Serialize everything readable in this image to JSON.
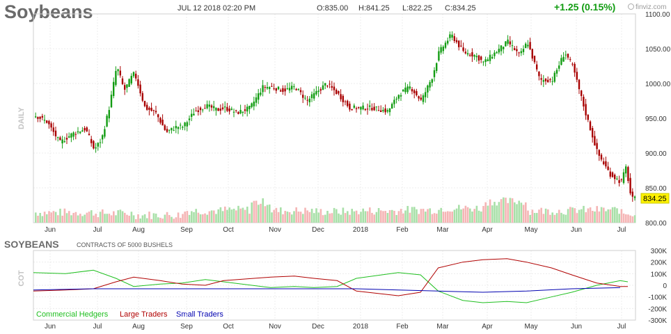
{
  "header": {
    "title": "Soybeans",
    "datetime": "JUL 12 2018 02:20 PM",
    "open": "O:835.00",
    "high": "H:841.25",
    "low": "L:822.25",
    "close": "C:834.25",
    "change": "+1.25 (0.15%)",
    "logo": "finviz.com",
    "colors": {
      "up": "#129c12",
      "down": "#a80000"
    }
  },
  "price_panel": {
    "side_label": "DAILY",
    "last_price_tag": "834.25",
    "month_labels": [
      "Jun",
      "Jul",
      "Aug",
      "Sep",
      "Oct",
      "Nov",
      "Dec",
      "2018",
      "Feb",
      "Mar",
      "Apr",
      "May",
      "Jun",
      "Jul"
    ]
  },
  "cot_panel": {
    "title": "SOYBEANS",
    "subtitle": "CONTRACTS OF 5000 BUSHELS",
    "side_label": "COT",
    "legend": [
      {
        "label": "Commercial Hedgers",
        "color": "#1fbf1f"
      },
      {
        "label": "Large Traders",
        "color": "#b00000"
      },
      {
        "label": "Small Traders",
        "color": "#0000b0"
      }
    ],
    "month_labels": [
      "Jun",
      "Jul",
      "Aug",
      "Sep",
      "Oct",
      "Nov",
      "Dec",
      "2018",
      "Feb",
      "Mar",
      "Apr",
      "May",
      "Jun",
      "Jul"
    ]
  },
  "chart_data": [
    {
      "type": "candlestick",
      "title": "Soybeans",
      "ylim": [
        800,
        1100
      ],
      "y_ticks": [
        800,
        850,
        900,
        950,
        1000,
        1050,
        1100
      ],
      "x_labels": [
        "Jun",
        "Jul",
        "Aug",
        "Sep",
        "Oct",
        "Nov",
        "Dec",
        "2018",
        "Feb",
        "Mar",
        "Apr",
        "May",
        "Jun",
        "Jul"
      ],
      "close_path": [
        [
          "Jun",
          955
        ],
        [
          "Jun",
          945
        ],
        [
          "Jun",
          915
        ],
        [
          "Jun",
          928
        ],
        [
          "Jun",
          935
        ],
        [
          "Jul",
          905
        ],
        [
          "Jul",
          920
        ],
        [
          "Jul",
          965
        ],
        [
          "Jul",
          1025
        ],
        [
          "Jul",
          990
        ],
        [
          "Jul",
          1010
        ],
        [
          "Aug",
          1015
        ],
        [
          "Aug",
          965
        ],
        [
          "Aug",
          958
        ],
        [
          "Aug",
          930
        ],
        [
          "Aug",
          938
        ],
        [
          "Sep",
          938
        ],
        [
          "Sep",
          960
        ],
        [
          "Sep",
          968
        ],
        [
          "Sep",
          962
        ],
        [
          "Oct",
          965
        ],
        [
          "Oct",
          958
        ],
        [
          "Oct",
          965
        ],
        [
          "Oct",
          995
        ],
        [
          "Nov",
          995
        ],
        [
          "Nov",
          990
        ],
        [
          "Nov",
          995
        ],
        [
          "Nov",
          975
        ],
        [
          "Dec",
          985
        ],
        [
          "Dec",
          1000
        ],
        [
          "Dec",
          985
        ],
        [
          "Dec",
          965
        ],
        [
          "2018",
          965
        ],
        [
          "2018",
          965
        ],
        [
          "2018",
          960
        ],
        [
          "Feb",
          985
        ],
        [
          "Feb",
          995
        ],
        [
          "Feb",
          975
        ],
        [
          "Feb",
          1010
        ],
        [
          "Mar",
          1045
        ],
        [
          "Mar",
          1070
        ],
        [
          "Mar",
          1045
        ],
        [
          "Mar",
          1040
        ],
        [
          "Apr",
          1030
        ],
        [
          "Apr",
          1045
        ],
        [
          "Apr",
          1060
        ],
        [
          "Apr",
          1040
        ],
        [
          "May",
          1060
        ],
        [
          "May",
          1005
        ],
        [
          "May",
          1005
        ],
        [
          "May",
          1045
        ],
        [
          "Jun",
          1025
        ],
        [
          "Jun",
          960
        ],
        [
          "Jun",
          900
        ],
        [
          "Jun",
          870
        ],
        [
          "Jul",
          858
        ],
        [
          "Jul",
          880
        ],
        [
          "Jul",
          834.25
        ]
      ],
      "volume_relative": [
        [
          "Jun",
          0.35
        ],
        [
          "Jul",
          0.3
        ],
        [
          "Aug",
          0.2
        ],
        [
          "Sep",
          0.45
        ],
        [
          "Oct",
          0.5
        ],
        [
          "Oct",
          0.95
        ],
        [
          "Nov",
          0.45
        ],
        [
          "Dec",
          0.4
        ],
        [
          "2018",
          0.45
        ],
        [
          "Feb",
          0.5
        ],
        [
          "Mar",
          0.6
        ],
        [
          "Apr",
          1.0
        ],
        [
          "May",
          0.45
        ],
        [
          "Jun",
          0.5
        ],
        [
          "Jul",
          0.25
        ]
      ]
    },
    {
      "type": "line",
      "title": "SOYBEANS",
      "subtitle": "CONTRACTS OF 5000 BUSHELS",
      "ylim": [
        -300000,
        300000
      ],
      "y_ticks": [
        "300K",
        "200K",
        "100K",
        "0",
        "-100K",
        "-200K",
        "-300K"
      ],
      "x_labels": [
        "Jun",
        "Jul",
        "Aug",
        "Sep",
        "Oct",
        "Nov",
        "Dec",
        "2018",
        "Feb",
        "Mar",
        "Apr",
        "May",
        "Jun",
        "Jul"
      ],
      "series": [
        {
          "name": "Commercial Hedgers",
          "color": "#1fbf1f",
          "points": [
            [
              "Jun",
              110000
            ],
            [
              "Jun",
              100000
            ],
            [
              "Jul",
              130000
            ],
            [
              "Jul",
              60000
            ],
            [
              "Aug",
              -10000
            ],
            [
              "Aug",
              10000
            ],
            [
              "Sep",
              20000
            ],
            [
              "Sep",
              50000
            ],
            [
              "Oct",
              30000
            ],
            [
              "Nov",
              -20000
            ],
            [
              "Nov",
              -10000
            ],
            [
              "Dec",
              -20000
            ],
            [
              "Dec",
              -10000
            ],
            [
              "2018",
              60000
            ],
            [
              "Feb",
              110000
            ],
            [
              "Feb",
              90000
            ],
            [
              "Mar",
              -50000
            ],
            [
              "Mar",
              -130000
            ],
            [
              "Apr",
              -150000
            ],
            [
              "Apr",
              -140000
            ],
            [
              "May",
              -150000
            ],
            [
              "May",
              -100000
            ],
            [
              "Jun",
              -60000
            ],
            [
              "Jun",
              0
            ],
            [
              "Jul",
              40000
            ],
            [
              "Jul",
              30000
            ]
          ]
        },
        {
          "name": "Large Traders",
          "color": "#b00000",
          "points": [
            [
              "Jun",
              -50000
            ],
            [
              "Jun",
              -40000
            ],
            [
              "Jul",
              -30000
            ],
            [
              "Jul",
              30000
            ],
            [
              "Aug",
              70000
            ],
            [
              "Aug",
              40000
            ],
            [
              "Sep",
              10000
            ],
            [
              "Sep",
              0
            ],
            [
              "Oct",
              40000
            ],
            [
              "Nov",
              70000
            ],
            [
              "Nov",
              80000
            ],
            [
              "Dec",
              60000
            ],
            [
              "Dec",
              40000
            ],
            [
              "2018",
              -50000
            ],
            [
              "Feb",
              -90000
            ],
            [
              "Feb",
              -60000
            ],
            [
              "Mar",
              150000
            ],
            [
              "Mar",
              200000
            ],
            [
              "Apr",
              220000
            ],
            [
              "Apr",
              230000
            ],
            [
              "May",
              200000
            ],
            [
              "May",
              150000
            ],
            [
              "Jun",
              90000
            ],
            [
              "Jun",
              20000
            ],
            [
              "Jul",
              -10000
            ],
            [
              "Jul",
              -10000
            ]
          ]
        },
        {
          "name": "Small Traders",
          "color": "#0000b0",
          "points": [
            [
              "Jun",
              -40000
            ],
            [
              "Jul",
              -30000
            ],
            [
              "Aug",
              -30000
            ],
            [
              "Sep",
              -30000
            ],
            [
              "Oct",
              -30000
            ],
            [
              "Nov",
              -30000
            ],
            [
              "Dec",
              -30000
            ],
            [
              "2018",
              -30000
            ],
            [
              "Feb",
              -40000
            ],
            [
              "Mar",
              -50000
            ],
            [
              "Apr",
              -60000
            ],
            [
              "May",
              -50000
            ],
            [
              "Jun",
              -30000
            ],
            [
              "Jul",
              -20000
            ]
          ]
        }
      ]
    }
  ]
}
